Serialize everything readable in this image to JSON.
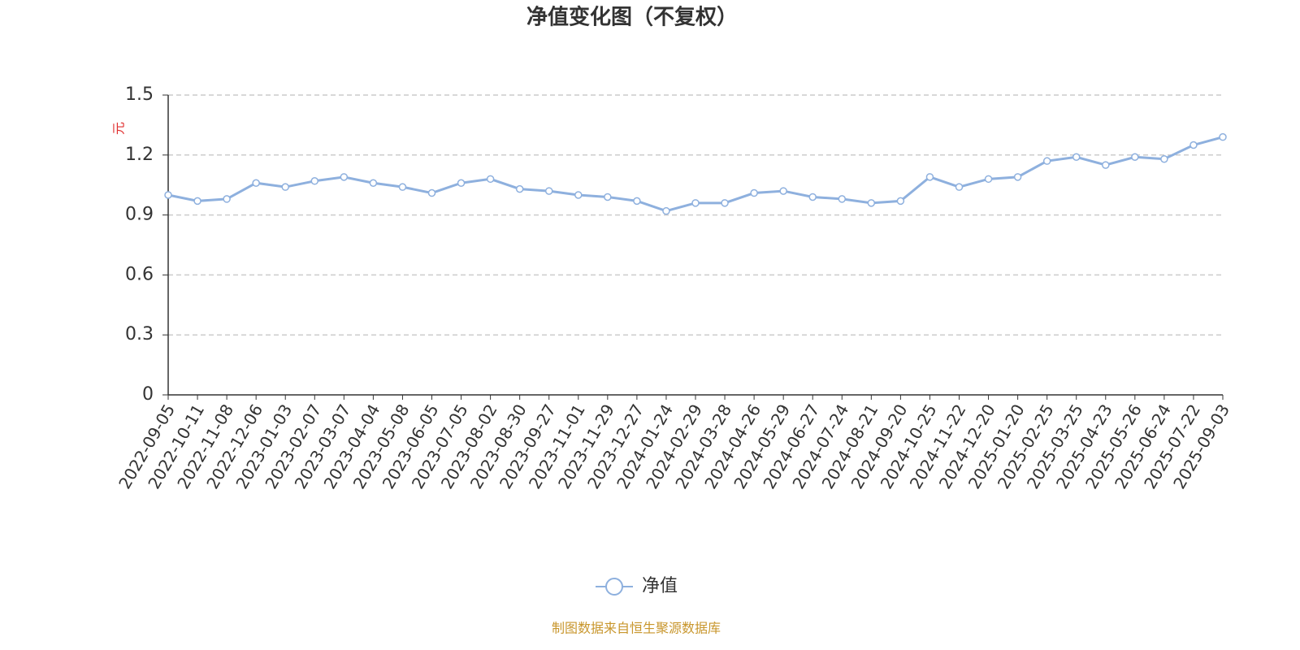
{
  "chart_data": {
    "type": "line",
    "title": "净值变化图（不复权）",
    "y_label": "元",
    "categories": [
      "2022-09-05",
      "2022-10-11",
      "2022-11-08",
      "2022-12-06",
      "2023-01-03",
      "2023-02-07",
      "2023-03-07",
      "2023-04-04",
      "2023-05-08",
      "2023-06-05",
      "2023-07-05",
      "2023-08-02",
      "2023-08-30",
      "2023-09-27",
      "2023-11-01",
      "2023-11-29",
      "2023-12-27",
      "2024-01-24",
      "2024-02-29",
      "2024-03-28",
      "2024-04-26",
      "2024-05-29",
      "2024-06-27",
      "2024-07-24",
      "2024-08-21",
      "2024-09-20",
      "2024-10-25",
      "2024-11-22",
      "2024-12-20",
      "2025-01-20",
      "2025-02-25",
      "2025-03-25",
      "2025-04-23",
      "2025-05-26",
      "2025-06-24",
      "2025-07-22",
      "2025-09-03"
    ],
    "series": [
      {
        "name": "净值",
        "color": "#8eb0de",
        "values": [
          1.0,
          0.97,
          0.98,
          1.06,
          1.04,
          1.07,
          1.09,
          1.06,
          1.04,
          1.01,
          1.06,
          1.08,
          1.03,
          1.02,
          1.0,
          0.99,
          0.97,
          0.92,
          0.96,
          0.96,
          1.01,
          1.02,
          0.99,
          0.98,
          0.96,
          0.97,
          1.09,
          1.04,
          1.08,
          1.09,
          1.17,
          1.19,
          1.15,
          1.19,
          1.18,
          1.25,
          1.29
        ]
      }
    ],
    "ylim": [
      0,
      1.5
    ],
    "yticks": [
      0,
      0.3,
      0.6,
      0.9,
      1.2,
      1.5
    ],
    "grid": true,
    "legend": "bottom",
    "source": "制图数据来自恒生聚源数据库"
  }
}
